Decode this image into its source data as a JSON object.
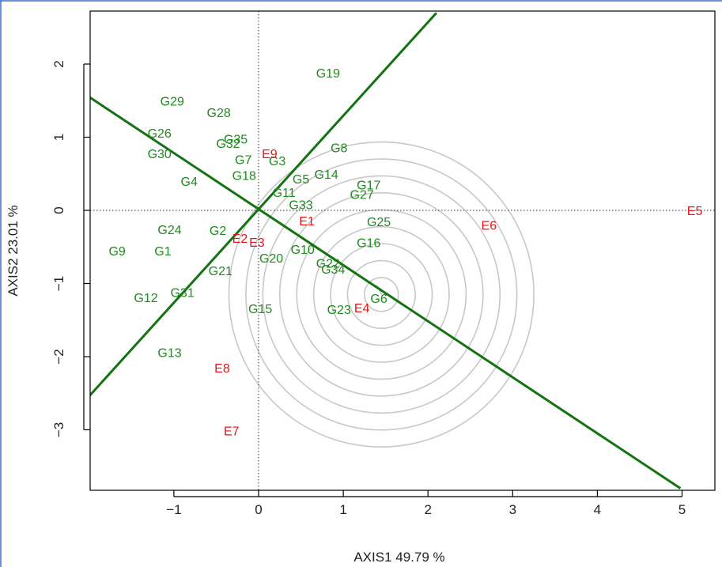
{
  "chart_data": {
    "type": "scatter",
    "xlabel": "AXIS1 49.79 %",
    "ylabel": "AXIS2 23.01 %",
    "xlim": [
      -2.0,
      5.2
    ],
    "ylim": [
      -3.8,
      2.7
    ],
    "xticks": [
      -1,
      0,
      1,
      2,
      3,
      4,
      5
    ],
    "yticks": [
      -3,
      -2,
      -1,
      0,
      1,
      2
    ],
    "xtick_labels": [
      "−1",
      "0",
      "1",
      "2",
      "3",
      "4",
      "5"
    ],
    "ytick_labels": [
      "−3",
      "−2",
      "−1",
      "0",
      "1",
      "2"
    ],
    "grid": false,
    "genotype_color": "#1f8a1f",
    "environment_color": "#e8141a",
    "line_color": "#137313",
    "circle_color": "#c8c8c8",
    "genotypes": [
      {
        "label": "G1",
        "x": -1.13,
        "y": -0.55
      },
      {
        "label": "G2",
        "x": -0.48,
        "y": -0.27
      },
      {
        "label": "G3",
        "x": 0.22,
        "y": 0.68
      },
      {
        "label": "G5",
        "x": 0.5,
        "y": 0.43
      },
      {
        "label": "G4",
        "x": -0.82,
        "y": 0.4
      },
      {
        "label": "G6",
        "x": 1.42,
        "y": -1.2
      },
      {
        "label": "G7",
        "x": -0.18,
        "y": 0.7
      },
      {
        "label": "G8",
        "x": 0.95,
        "y": 0.86
      },
      {
        "label": "G9",
        "x": -1.67,
        "y": -0.55
      },
      {
        "label": "G10",
        "x": 0.52,
        "y": -0.53
      },
      {
        "label": "G11",
        "x": 0.3,
        "y": 0.25
      },
      {
        "label": "G12",
        "x": -1.33,
        "y": -1.19
      },
      {
        "label": "G13",
        "x": -1.05,
        "y": -1.94
      },
      {
        "label": "G14",
        "x": 0.8,
        "y": 0.5
      },
      {
        "label": "G15",
        "x": 0.02,
        "y": -1.34
      },
      {
        "label": "G16",
        "x": 1.3,
        "y": -0.44
      },
      {
        "label": "G17",
        "x": 1.3,
        "y": 0.35
      },
      {
        "label": "G18",
        "x": -0.17,
        "y": 0.48
      },
      {
        "label": "G19",
        "x": 0.82,
        "y": 1.88
      },
      {
        "label": "G20",
        "x": 0.15,
        "y": -0.65
      },
      {
        "label": "G21",
        "x": -0.45,
        "y": -0.82
      },
      {
        "label": "G22",
        "x": 0.82,
        "y": -0.72
      },
      {
        "label": "G23",
        "x": 0.95,
        "y": -1.35
      },
      {
        "label": "G24",
        "x": -1.05,
        "y": -0.26
      },
      {
        "label": "G25",
        "x": 1.42,
        "y": -0.15
      },
      {
        "label": "G26",
        "x": -1.17,
        "y": 1.06
      },
      {
        "label": "G27",
        "x": 1.22,
        "y": 0.22
      },
      {
        "label": "G28",
        "x": -0.47,
        "y": 1.34
      },
      {
        "label": "G29",
        "x": -1.02,
        "y": 1.5
      },
      {
        "label": "G30",
        "x": -1.17,
        "y": 0.78
      },
      {
        "label": "G31",
        "x": -0.9,
        "y": -1.12
      },
      {
        "label": "G32",
        "x": -0.36,
        "y": 0.92
      },
      {
        "label": "G33",
        "x": 0.5,
        "y": 0.08
      },
      {
        "label": "G34",
        "x": 0.88,
        "y": -0.8
      },
      {
        "label": "G35",
        "x": -0.27,
        "y": 0.98
      }
    ],
    "environments": [
      {
        "label": "E1",
        "x": 0.57,
        "y": -0.14
      },
      {
        "label": "E2",
        "x": -0.22,
        "y": -0.38
      },
      {
        "label": "E3",
        "x": -0.02,
        "y": -0.43
      },
      {
        "label": "E4",
        "x": 1.22,
        "y": -1.33
      },
      {
        "label": "E5",
        "x": 5.15,
        "y": 0.0
      },
      {
        "label": "E6",
        "x": 2.72,
        "y": -0.2
      },
      {
        "label": "E7",
        "x": -0.32,
        "y": -3.01
      },
      {
        "label": "E8",
        "x": -0.43,
        "y": -2.15
      },
      {
        "label": "E9",
        "x": 0.13,
        "y": 0.78
      }
    ],
    "ideal_point": {
      "x": 1.45,
      "y": -1.15
    },
    "concentric_circles": {
      "count": 9,
      "step_radius": 0.2
    },
    "reference_lines": [
      {
        "x1": -2.0,
        "y1": 1.55,
        "x2": 4.98,
        "y2": -3.8
      },
      {
        "x1": -2.0,
        "y1": -2.54,
        "x2": 2.1,
        "y2": 2.7
      }
    ]
  }
}
